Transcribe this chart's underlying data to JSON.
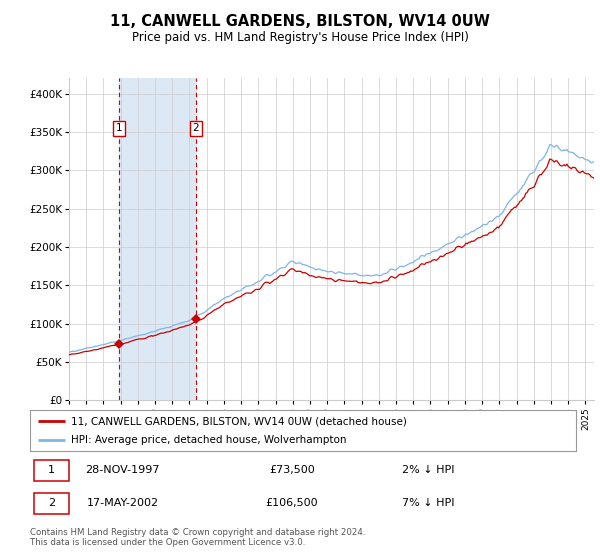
{
  "title": "11, CANWELL GARDENS, BILSTON, WV14 0UW",
  "subtitle": "Price paid vs. HM Land Registry's House Price Index (HPI)",
  "legend_entry1": "11, CANWELL GARDENS, BILSTON, WV14 0UW (detached house)",
  "legend_entry2": "HPI: Average price, detached house, Wolverhampton",
  "table_row1_date": "28-NOV-1997",
  "table_row1_price": "£73,500",
  "table_row1_hpi": "2% ↓ HPI",
  "table_row2_date": "17-MAY-2002",
  "table_row2_price": "£106,500",
  "table_row2_hpi": "7% ↓ HPI",
  "footer": "Contains HM Land Registry data © Crown copyright and database right 2024.\nThis data is licensed under the Open Government Licence v3.0.",
  "hpi_color": "#7EB6E8",
  "price_color": "#CC0000",
  "marker_color": "#CC0000",
  "shade_color": "#DCE9F5",
  "vline_color": "#CC0000",
  "bg_color": "#FFFFFF",
  "grid_color": "#CCCCCC",
  "ylim": [
    0,
    420000
  ],
  "yticks": [
    0,
    50000,
    100000,
    150000,
    200000,
    250000,
    300000,
    350000,
    400000
  ],
  "sale1_year": 1997.91,
  "sale1_price": 73500,
  "sale2_year": 2002.38,
  "sale2_price": 106500,
  "xmin": 1995.0,
  "xmax": 2025.5
}
